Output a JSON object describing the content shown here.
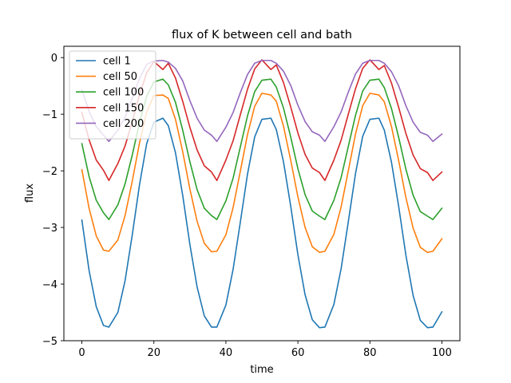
{
  "chart_data": {
    "type": "line",
    "title": "flux of K between cell and bath",
    "xlabel": "time",
    "ylabel": "flux",
    "xlim": [
      -5,
      105
    ],
    "ylim": [
      -5,
      0.2
    ],
    "x_ticks": [
      0,
      20,
      40,
      60,
      80,
      100
    ],
    "y_ticks": [
      -5,
      -4,
      -3,
      -2,
      -1,
      0
    ],
    "x_tick_labels": [
      "0",
      "20",
      "40",
      "60",
      "80",
      "100"
    ],
    "y_tick_labels": [
      "−5",
      "−4",
      "−3",
      "−2",
      "−1",
      "0"
    ],
    "grid": false,
    "legend_position": "upper-left",
    "period": 30,
    "x": [
      0,
      2,
      4,
      6,
      7.5,
      10,
      12,
      14,
      16,
      18,
      20,
      22.5,
      24,
      26,
      28,
      30,
      32,
      34,
      36,
      37.5,
      40,
      42,
      44,
      46,
      48,
      50,
      52.5,
      54,
      56,
      58,
      60,
      62,
      64,
      66,
      67.5,
      70,
      72,
      74,
      76,
      78,
      80,
      82.5,
      84,
      86,
      88,
      90,
      92,
      94,
      96,
      97.5,
      100
    ],
    "series": [
      {
        "name": "cell 1",
        "color": "#1f77b4",
        "values": [
          -2.87,
          -3.76,
          -4.4,
          -4.73,
          -4.76,
          -4.5,
          -3.94,
          -3.13,
          -2.25,
          -1.52,
          -1.14,
          -1.07,
          -1.2,
          -1.68,
          -2.43,
          -3.3,
          -4.05,
          -4.56,
          -4.76,
          -4.76,
          -4.37,
          -3.74,
          -2.91,
          -2.06,
          -1.4,
          -1.09,
          -1.07,
          -1.27,
          -1.84,
          -2.62,
          -3.48,
          -4.19,
          -4.63,
          -4.77,
          -4.76,
          -4.36,
          -3.73,
          -2.9,
          -2.05,
          -1.39,
          -1.09,
          -1.07,
          -1.28,
          -1.85,
          -2.63,
          -3.49,
          -4.2,
          -4.64,
          -4.77,
          -4.76,
          -4.49
        ]
      },
      {
        "name": "cell 50",
        "color": "#ff7f0e",
        "values": [
          -1.98,
          -2.66,
          -3.15,
          -3.4,
          -3.42,
          -3.22,
          -2.79,
          -2.18,
          -1.51,
          -0.96,
          -0.67,
          -0.66,
          -0.72,
          -1.09,
          -1.66,
          -2.32,
          -2.89,
          -3.28,
          -3.43,
          -3.42,
          -3.13,
          -2.65,
          -2.01,
          -1.36,
          -0.86,
          -0.63,
          -0.66,
          -0.77,
          -1.21,
          -1.81,
          -2.46,
          -3.0,
          -3.34,
          -3.44,
          -3.42,
          -3.12,
          -2.64,
          -2.0,
          -1.35,
          -0.85,
          -0.63,
          -0.66,
          -0.78,
          -1.22,
          -1.82,
          -2.47,
          -3.01,
          -3.35,
          -3.44,
          -3.42,
          -3.2
        ]
      },
      {
        "name": "cell 100",
        "color": "#2ca02c",
        "values": [
          -1.52,
          -2.1,
          -2.52,
          -2.74,
          -2.86,
          -2.6,
          -2.23,
          -1.72,
          -1.15,
          -0.68,
          -0.43,
          -0.38,
          -0.48,
          -0.79,
          -1.28,
          -1.84,
          -2.33,
          -2.66,
          -2.79,
          -2.86,
          -2.53,
          -2.13,
          -1.58,
          -1.03,
          -0.6,
          -0.4,
          -0.38,
          -0.52,
          -0.89,
          -1.4,
          -1.96,
          -2.42,
          -2.71,
          -2.8,
          -2.86,
          -2.52,
          -2.12,
          -1.57,
          -1.02,
          -0.59,
          -0.4,
          -0.38,
          -0.53,
          -0.9,
          -1.41,
          -1.97,
          -2.43,
          -2.72,
          -2.8,
          -2.86,
          -2.66
        ]
      },
      {
        "name": "cell 150",
        "color": "#d62728",
        "values": [
          -0.97,
          -1.45,
          -1.81,
          -1.99,
          -2.17,
          -1.87,
          -1.56,
          -1.13,
          -0.66,
          -0.27,
          -0.07,
          -0.21,
          -0.1,
          -0.36,
          -0.77,
          -1.23,
          -1.63,
          -1.91,
          -2.02,
          -2.17,
          -1.81,
          -1.47,
          -1.01,
          -0.56,
          -0.2,
          -0.04,
          -0.21,
          -0.13,
          -0.44,
          -0.87,
          -1.33,
          -1.71,
          -1.95,
          -2.03,
          -2.17,
          -1.81,
          -1.46,
          -1.0,
          -0.55,
          -0.19,
          -0.04,
          -0.21,
          -0.14,
          -0.45,
          -0.88,
          -1.34,
          -1.72,
          -1.96,
          -2.03,
          -2.17,
          -2.02
        ]
      },
      {
        "name": "cell 200",
        "color": "#9467bd",
        "values": [
          -0.57,
          -0.95,
          -1.22,
          -1.37,
          -1.48,
          -1.28,
          -1.05,
          -0.72,
          -0.37,
          -0.12,
          -0.06,
          -0.05,
          -0.08,
          -0.19,
          -0.41,
          -0.76,
          -1.07,
          -1.28,
          -1.37,
          -1.48,
          -1.23,
          -0.97,
          -0.62,
          -0.3,
          -0.1,
          -0.05,
          -0.05,
          -0.1,
          -0.24,
          -0.49,
          -0.84,
          -1.13,
          -1.31,
          -1.37,
          -1.48,
          -1.22,
          -0.96,
          -0.61,
          -0.29,
          -0.1,
          -0.05,
          -0.05,
          -0.1,
          -0.25,
          -0.5,
          -0.85,
          -1.14,
          -1.32,
          -1.37,
          -1.48,
          -1.35
        ]
      }
    ]
  }
}
